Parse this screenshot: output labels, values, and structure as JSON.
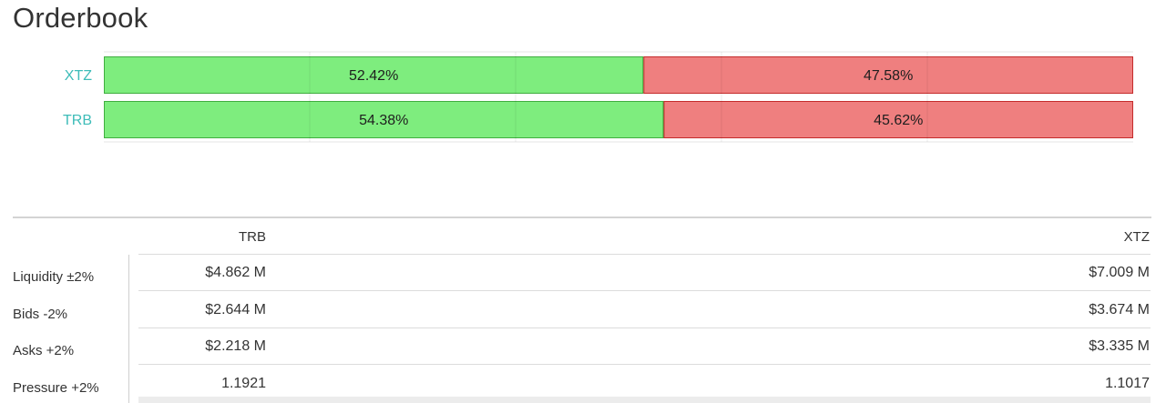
{
  "title": "Orderbook",
  "chart_data": {
    "type": "bar",
    "stacked": true,
    "orientation": "horizontal",
    "categories": [
      "XTZ",
      "TRB"
    ],
    "series": [
      {
        "values": [
          52.42,
          54.38
        ],
        "labels": [
          "52.42%",
          "54.38%"
        ],
        "color": "#7eed7e",
        "border": "#3fae3f"
      },
      {
        "values": [
          47.58,
          45.62
        ],
        "labels": [
          "47.58%",
          "45.62%"
        ],
        "color": "#ef7f7f",
        "border": "#c42c2c"
      }
    ],
    "xlim": [
      0,
      100
    ],
    "grid": true
  },
  "table": {
    "columns": [
      "TRB",
      "XTZ"
    ],
    "rows": [
      {
        "label": "Liquidity ±2%",
        "values": [
          "$4.862 M",
          "$7.009 M"
        ]
      },
      {
        "label": "Bids -2%",
        "values": [
          "$2.644 M",
          "$3.674 M"
        ]
      },
      {
        "label": "Asks +2%",
        "values": [
          "$2.218 M",
          "$3.335 M"
        ]
      },
      {
        "label": "Pressure +2%",
        "values": [
          "1.1921",
          "1.1017"
        ]
      }
    ]
  },
  "colors": {
    "label_teal": "#3dbcb8",
    "grid": "#e0e0e0"
  }
}
